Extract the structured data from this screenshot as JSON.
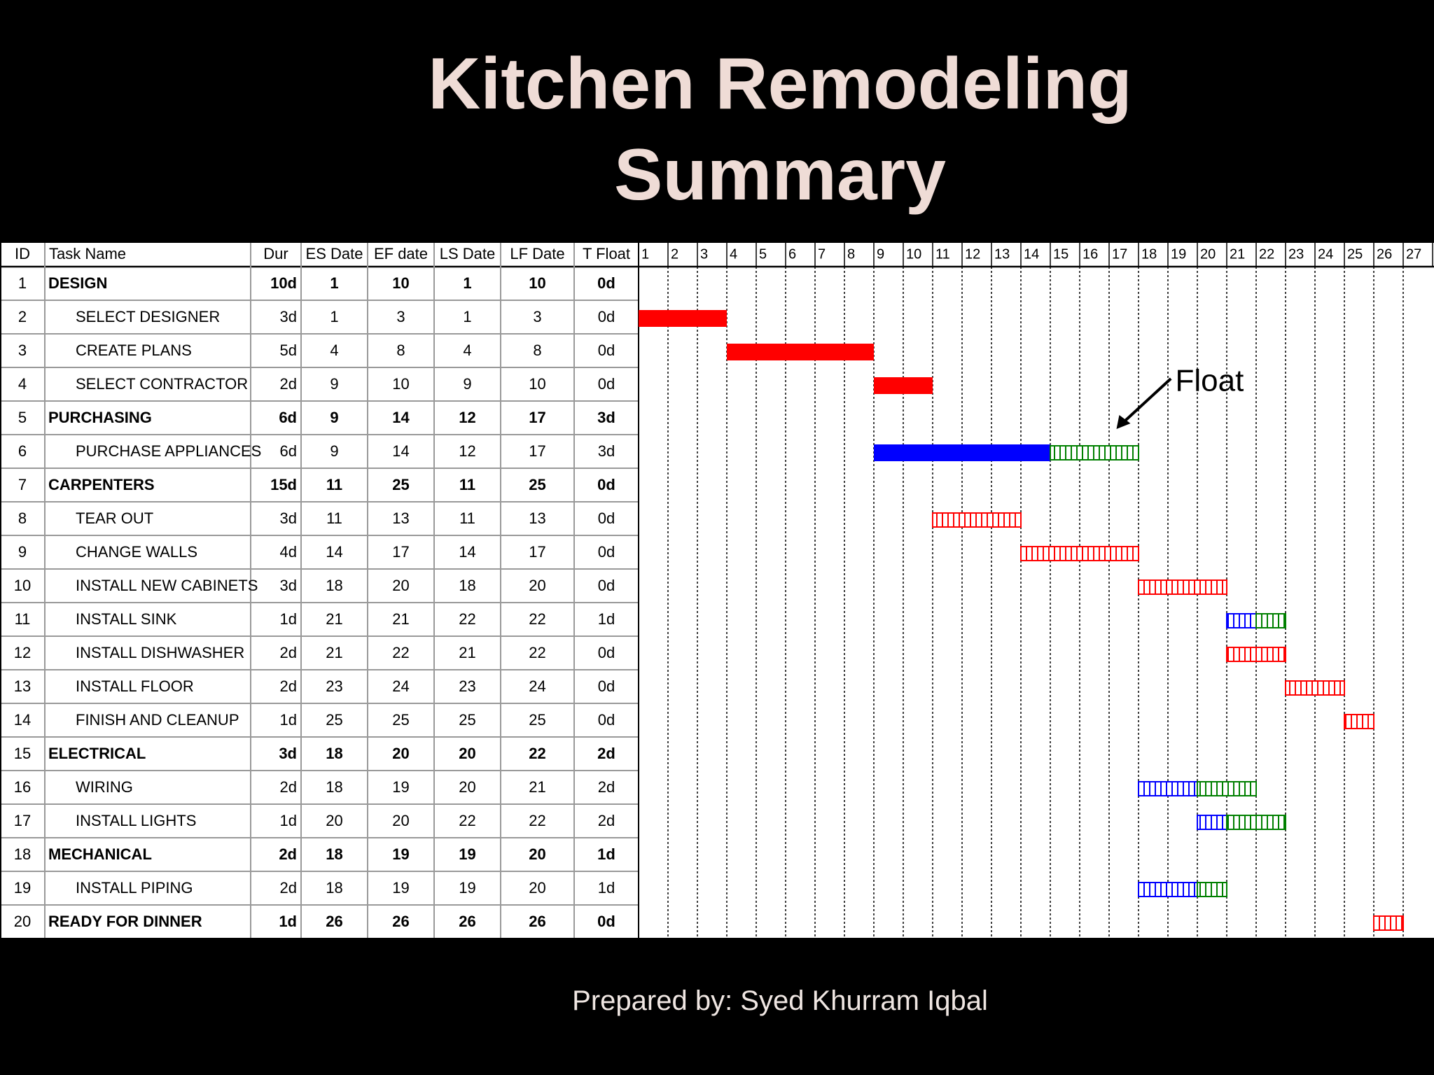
{
  "title_line1": "Kitchen Remodeling",
  "title_line2": "Summary",
  "footer": "Prepared by: Syed Khurram Iqbal",
  "annotation": "Float",
  "colors": {
    "critical": "#ff0000",
    "noncritical": "#0000ff",
    "float": "#008000",
    "summary": "#000000"
  },
  "chart_data": {
    "type": "table",
    "columns": [
      "ID",
      "Task Name",
      "Dur",
      "ES Date",
      "EF date",
      "LS Date",
      "LF Date",
      "T Float"
    ],
    "timeline": [
      1,
      2,
      3,
      4,
      5,
      6,
      7,
      8,
      9,
      10,
      11,
      12,
      13,
      14,
      15,
      16,
      17,
      18,
      19,
      20,
      21,
      22,
      23,
      24,
      25,
      26,
      27
    ],
    "rows": [
      {
        "id": "1",
        "name": "DESIGN",
        "dur": "10d",
        "es": "1",
        "ef": "10",
        "ls": "1",
        "lf": "10",
        "tf": "0d",
        "summary": true
      },
      {
        "id": "2",
        "name": "SELECT DESIGNER",
        "dur": "3d",
        "es": "1",
        "ef": "3",
        "ls": "1",
        "lf": "3",
        "tf": "0d",
        "bar": {
          "start": 1,
          "end": 3,
          "style": "solid",
          "color": "critical"
        }
      },
      {
        "id": "3",
        "name": "CREATE PLANS",
        "dur": "5d",
        "es": "4",
        "ef": "8",
        "ls": "4",
        "lf": "8",
        "tf": "0d",
        "bar": {
          "start": 4,
          "end": 8,
          "style": "solid",
          "color": "critical"
        }
      },
      {
        "id": "4",
        "name": "SELECT CONTRACTOR",
        "dur": "2d",
        "es": "9",
        "ef": "10",
        "ls": "9",
        "lf": "10",
        "tf": "0d",
        "bar": {
          "start": 9,
          "end": 10,
          "style": "solid",
          "color": "critical"
        }
      },
      {
        "id": "5",
        "name": "PURCHASING",
        "dur": "6d",
        "es": "9",
        "ef": "14",
        "ls": "12",
        "lf": "17",
        "tf": "3d",
        "summary": true
      },
      {
        "id": "6",
        "name": "PURCHASE APPLIANCES",
        "dur": "6d",
        "es": "9",
        "ef": "14",
        "ls": "12",
        "lf": "17",
        "tf": "3d",
        "bar": {
          "start": 9,
          "end": 14,
          "style": "solid",
          "color": "noncritical"
        },
        "float": {
          "start": 15,
          "end": 17
        }
      },
      {
        "id": "7",
        "name": "CARPENTERS",
        "dur": "15d",
        "es": "11",
        "ef": "25",
        "ls": "11",
        "lf": "25",
        "tf": "0d",
        "summary": true
      },
      {
        "id": "8",
        "name": "TEAR OUT",
        "dur": "3d",
        "es": "11",
        "ef": "13",
        "ls": "11",
        "lf": "13",
        "tf": "0d",
        "bar": {
          "start": 11,
          "end": 13,
          "style": "hatch",
          "color": "critical"
        }
      },
      {
        "id": "9",
        "name": "CHANGE WALLS",
        "dur": "4d",
        "es": "14",
        "ef": "17",
        "ls": "14",
        "lf": "17",
        "tf": "0d",
        "bar": {
          "start": 14,
          "end": 17,
          "style": "hatch",
          "color": "critical"
        }
      },
      {
        "id": "10",
        "name": "INSTALL NEW CABINETS",
        "dur": "3d",
        "es": "18",
        "ef": "20",
        "ls": "18",
        "lf": "20",
        "tf": "0d",
        "bar": {
          "start": 18,
          "end": 20,
          "style": "hatch",
          "color": "critical"
        }
      },
      {
        "id": "11",
        "name": "INSTALL SINK",
        "dur": "1d",
        "es": "21",
        "ef": "21",
        "ls": "22",
        "lf": "22",
        "tf": "1d",
        "bar": {
          "start": 21,
          "end": 21,
          "style": "hatch",
          "color": "noncritical"
        },
        "float": {
          "start": 22,
          "end": 22
        }
      },
      {
        "id": "12",
        "name": "INSTALL DISHWASHER",
        "dur": "2d",
        "es": "21",
        "ef": "22",
        "ls": "21",
        "lf": "22",
        "tf": "0d",
        "bar": {
          "start": 21,
          "end": 22,
          "style": "hatch",
          "color": "critical"
        }
      },
      {
        "id": "13",
        "name": "INSTALL FLOOR",
        "dur": "2d",
        "es": "23",
        "ef": "24",
        "ls": "23",
        "lf": "24",
        "tf": "0d",
        "bar": {
          "start": 23,
          "end": 24,
          "style": "hatch",
          "color": "critical"
        }
      },
      {
        "id": "14",
        "name": "FINISH AND CLEANUP",
        "dur": "1d",
        "es": "25",
        "ef": "25",
        "ls": "25",
        "lf": "25",
        "tf": "0d",
        "bar": {
          "start": 25,
          "end": 25,
          "style": "hatch",
          "color": "critical"
        }
      },
      {
        "id": "15",
        "name": "ELECTRICAL",
        "dur": "3d",
        "es": "18",
        "ef": "20",
        "ls": "20",
        "lf": "22",
        "tf": "2d",
        "summary": true
      },
      {
        "id": "16",
        "name": "WIRING",
        "dur": "2d",
        "es": "18",
        "ef": "19",
        "ls": "20",
        "lf": "21",
        "tf": "2d",
        "bar": {
          "start": 18,
          "end": 19,
          "style": "hatch",
          "color": "noncritical"
        },
        "float": {
          "start": 20,
          "end": 21
        }
      },
      {
        "id": "17",
        "name": "INSTALL LIGHTS",
        "dur": "1d",
        "es": "20",
        "ef": "20",
        "ls": "22",
        "lf": "22",
        "tf": "2d",
        "bar": {
          "start": 20,
          "end": 20,
          "style": "hatch",
          "color": "noncritical"
        },
        "float": {
          "start": 21,
          "end": 22
        }
      },
      {
        "id": "18",
        "name": "MECHANICAL",
        "dur": "2d",
        "es": "18",
        "ef": "19",
        "ls": "19",
        "lf": "20",
        "tf": "1d",
        "summary": true
      },
      {
        "id": "19",
        "name": "INSTALL PIPING",
        "dur": "2d",
        "es": "18",
        "ef": "19",
        "ls": "19",
        "lf": "20",
        "tf": "1d",
        "bar": {
          "start": 18,
          "end": 19,
          "style": "hatch",
          "color": "noncritical"
        },
        "float": {
          "start": 20,
          "end": 20
        }
      },
      {
        "id": "20",
        "name": "READY FOR DINNER",
        "dur": "1d",
        "es": "26",
        "ef": "26",
        "ls": "26",
        "lf": "26",
        "tf": "0d",
        "summary": true,
        "bar": {
          "start": 26,
          "end": 26,
          "style": "hatch",
          "color": "critical"
        }
      }
    ]
  }
}
